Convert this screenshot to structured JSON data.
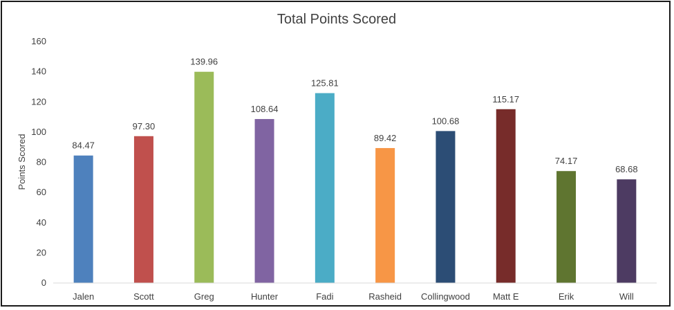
{
  "chart_data": {
    "type": "bar",
    "title": "Total Points Scored",
    "xlabel": "",
    "ylabel": "Points Scored",
    "ylim": [
      0,
      160
    ],
    "yticks": [
      0,
      20,
      40,
      60,
      80,
      100,
      120,
      140,
      160
    ],
    "categories": [
      "Jalen",
      "Scott",
      "Greg",
      "Hunter",
      "Fadi",
      "Rasheid",
      "Collingwood",
      "Matt E",
      "Erik",
      "Will"
    ],
    "values": [
      84.47,
      97.3,
      139.96,
      108.64,
      125.81,
      89.42,
      100.68,
      115.17,
      74.17,
      68.68
    ],
    "data_labels": [
      "84.47",
      "97.30",
      "139.96",
      "108.64",
      "125.81",
      "89.42",
      "100.68",
      "115.17",
      "74.17",
      "68.68"
    ],
    "colors": [
      "#4e81bd",
      "#c0504d",
      "#9bbb59",
      "#8064a2",
      "#4bacc6",
      "#f79646",
      "#2c4d75",
      "#772c2a",
      "#5f7530",
      "#4d3b62"
    ],
    "grid": false,
    "legend": "none"
  }
}
